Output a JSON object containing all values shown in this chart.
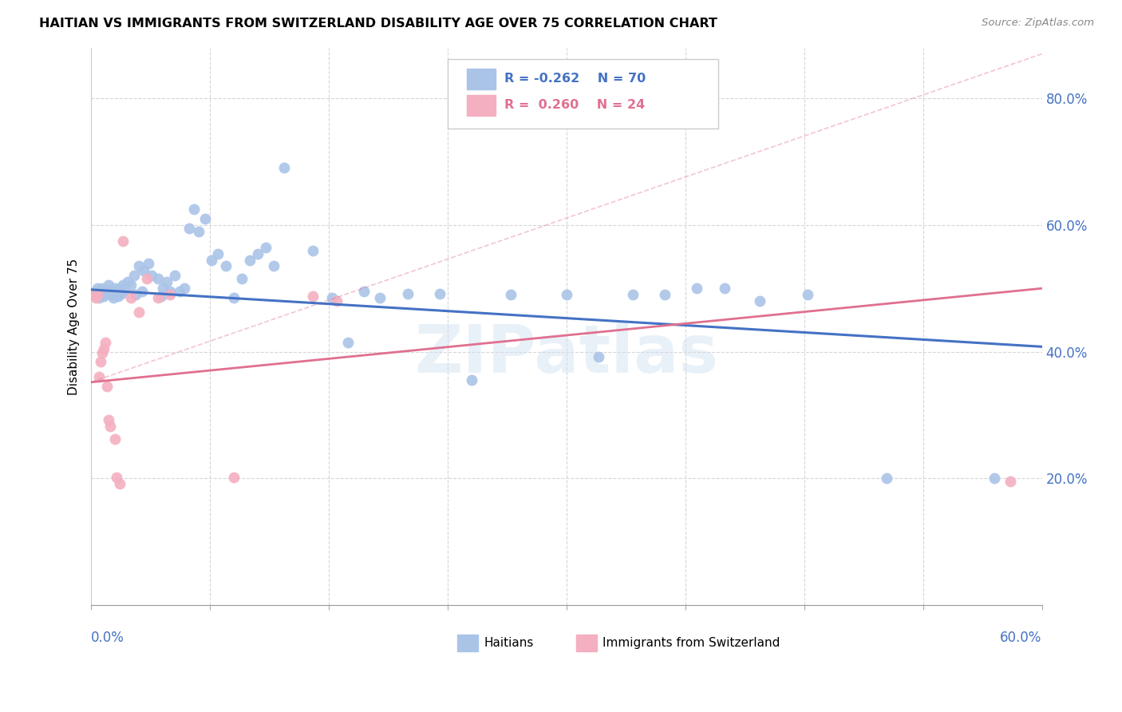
{
  "title": "HAITIAN VS IMMIGRANTS FROM SWITZERLAND DISABILITY AGE OVER 75 CORRELATION CHART",
  "source": "Source: ZipAtlas.com",
  "ylabel": "Disability Age Over 75",
  "ytick_labels": [
    "20.0%",
    "40.0%",
    "60.0%",
    "80.0%"
  ],
  "ytick_values": [
    0.2,
    0.4,
    0.6,
    0.8
  ],
  "xlim": [
    0.0,
    0.6
  ],
  "ylim": [
    0.0,
    0.88
  ],
  "blue_color": "#aac4e8",
  "pink_color": "#f4afc0",
  "trendline_blue_color": "#4472c4",
  "trendline_pink_color": "#e07090",
  "watermark": "ZIPatlas",
  "blue_points": [
    [
      0.002,
      0.49
    ],
    [
      0.003,
      0.495
    ],
    [
      0.004,
      0.5
    ],
    [
      0.005,
      0.485
    ],
    [
      0.006,
      0.495
    ],
    [
      0.007,
      0.5
    ],
    [
      0.008,
      0.488
    ],
    [
      0.009,
      0.498
    ],
    [
      0.01,
      0.492
    ],
    [
      0.011,
      0.505
    ],
    [
      0.012,
      0.498
    ],
    [
      0.013,
      0.49
    ],
    [
      0.014,
      0.485
    ],
    [
      0.015,
      0.5
    ],
    [
      0.016,
      0.495
    ],
    [
      0.017,
      0.488
    ],
    [
      0.018,
      0.5
    ],
    [
      0.019,
      0.492
    ],
    [
      0.02,
      0.505
    ],
    [
      0.021,
      0.498
    ],
    [
      0.023,
      0.51
    ],
    [
      0.025,
      0.505
    ],
    [
      0.027,
      0.52
    ],
    [
      0.03,
      0.535
    ],
    [
      0.033,
      0.528
    ],
    [
      0.036,
      0.54
    ],
    [
      0.038,
      0.52
    ],
    [
      0.042,
      0.515
    ],
    [
      0.045,
      0.5
    ],
    [
      0.048,
      0.51
    ],
    [
      0.05,
      0.495
    ],
    [
      0.053,
      0.52
    ],
    [
      0.056,
      0.495
    ],
    [
      0.059,
      0.5
    ],
    [
      0.062,
      0.595
    ],
    [
      0.065,
      0.625
    ],
    [
      0.068,
      0.59
    ],
    [
      0.072,
      0.61
    ],
    [
      0.076,
      0.545
    ],
    [
      0.08,
      0.555
    ],
    [
      0.085,
      0.535
    ],
    [
      0.09,
      0.485
    ],
    [
      0.095,
      0.515
    ],
    [
      0.1,
      0.545
    ],
    [
      0.105,
      0.555
    ],
    [
      0.11,
      0.565
    ],
    [
      0.115,
      0.535
    ],
    [
      0.122,
      0.69
    ],
    [
      0.14,
      0.56
    ],
    [
      0.152,
      0.485
    ],
    [
      0.162,
      0.415
    ],
    [
      0.172,
      0.495
    ],
    [
      0.182,
      0.485
    ],
    [
      0.2,
      0.492
    ],
    [
      0.22,
      0.492
    ],
    [
      0.24,
      0.355
    ],
    [
      0.265,
      0.49
    ],
    [
      0.3,
      0.49
    ],
    [
      0.32,
      0.392
    ],
    [
      0.342,
      0.49
    ],
    [
      0.362,
      0.49
    ],
    [
      0.382,
      0.5
    ],
    [
      0.4,
      0.5
    ],
    [
      0.422,
      0.48
    ],
    [
      0.452,
      0.49
    ],
    [
      0.502,
      0.2
    ],
    [
      0.57,
      0.2
    ],
    [
      0.028,
      0.49
    ],
    [
      0.032,
      0.495
    ],
    [
      0.044,
      0.488
    ]
  ],
  "pink_points": [
    [
      0.002,
      0.49
    ],
    [
      0.003,
      0.485
    ],
    [
      0.004,
      0.49
    ],
    [
      0.005,
      0.36
    ],
    [
      0.006,
      0.385
    ],
    [
      0.007,
      0.398
    ],
    [
      0.008,
      0.405
    ],
    [
      0.009,
      0.415
    ],
    [
      0.01,
      0.345
    ],
    [
      0.011,
      0.292
    ],
    [
      0.012,
      0.282
    ],
    [
      0.015,
      0.262
    ],
    [
      0.016,
      0.202
    ],
    [
      0.018,
      0.192
    ],
    [
      0.02,
      0.575
    ],
    [
      0.025,
      0.485
    ],
    [
      0.03,
      0.462
    ],
    [
      0.035,
      0.515
    ],
    [
      0.042,
      0.485
    ],
    [
      0.05,
      0.49
    ],
    [
      0.09,
      0.202
    ],
    [
      0.14,
      0.488
    ],
    [
      0.155,
      0.48
    ],
    [
      0.58,
      0.195
    ]
  ],
  "blue_trend": [
    0.0,
    0.6,
    0.498,
    0.408
  ],
  "pink_trend": [
    0.0,
    0.6,
    0.352,
    0.5
  ],
  "pink_trend_ext": [
    0.0,
    0.6,
    0.352,
    0.87
  ]
}
